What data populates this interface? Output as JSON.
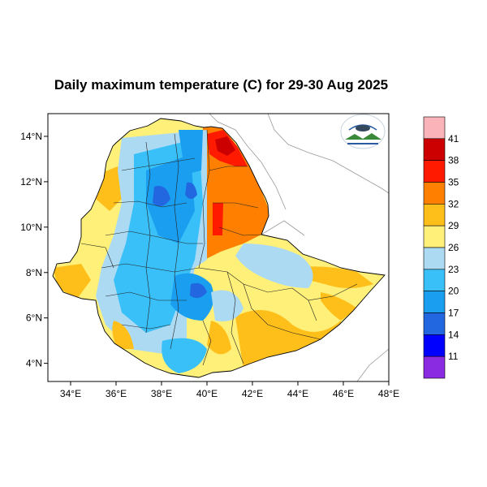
{
  "title": "Daily maximum temperature (C) for 29-30 Aug 2025",
  "map": {
    "region": "Ethiopia",
    "variable": "Daily maximum temperature",
    "unit": "C",
    "lon_range": [
      33,
      48
    ],
    "lat_range": [
      3.2,
      15
    ],
    "lon_ticks": [
      {
        "value": 34,
        "label": "34°E"
      },
      {
        "value": 36,
        "label": "36°E"
      },
      {
        "value": 38,
        "label": "38°E"
      },
      {
        "value": 40,
        "label": "40°E"
      },
      {
        "value": 42,
        "label": "42°E"
      },
      {
        "value": 44,
        "label": "44°E"
      },
      {
        "value": 46,
        "label": "46°E"
      },
      {
        "value": 48,
        "label": "48°E"
      }
    ],
    "lat_ticks": [
      {
        "value": 4,
        "label": "4°N"
      },
      {
        "value": 6,
        "label": "6°N"
      },
      {
        "value": 8,
        "label": "8°N"
      },
      {
        "value": 10,
        "label": "10°N"
      },
      {
        "value": 12,
        "label": "12°N"
      },
      {
        "value": 14,
        "label": "14°N"
      }
    ]
  },
  "colorbar": {
    "labels": [
      "41",
      "38",
      "35",
      "32",
      "29",
      "26",
      "23",
      "20",
      "17",
      "14",
      "11"
    ],
    "colors": [
      "#f9b3b9",
      "#cc0000",
      "#ff1a00",
      "#ff8000",
      "#ffbf1a",
      "#fff07a",
      "#acdaf2",
      "#39c0f8",
      "#1a9ff0",
      "#2266e0",
      "#0000ff",
      "#8a2be2"
    ]
  },
  "logo": {
    "name": "ethiopian-meteorology-institute-logo"
  }
}
